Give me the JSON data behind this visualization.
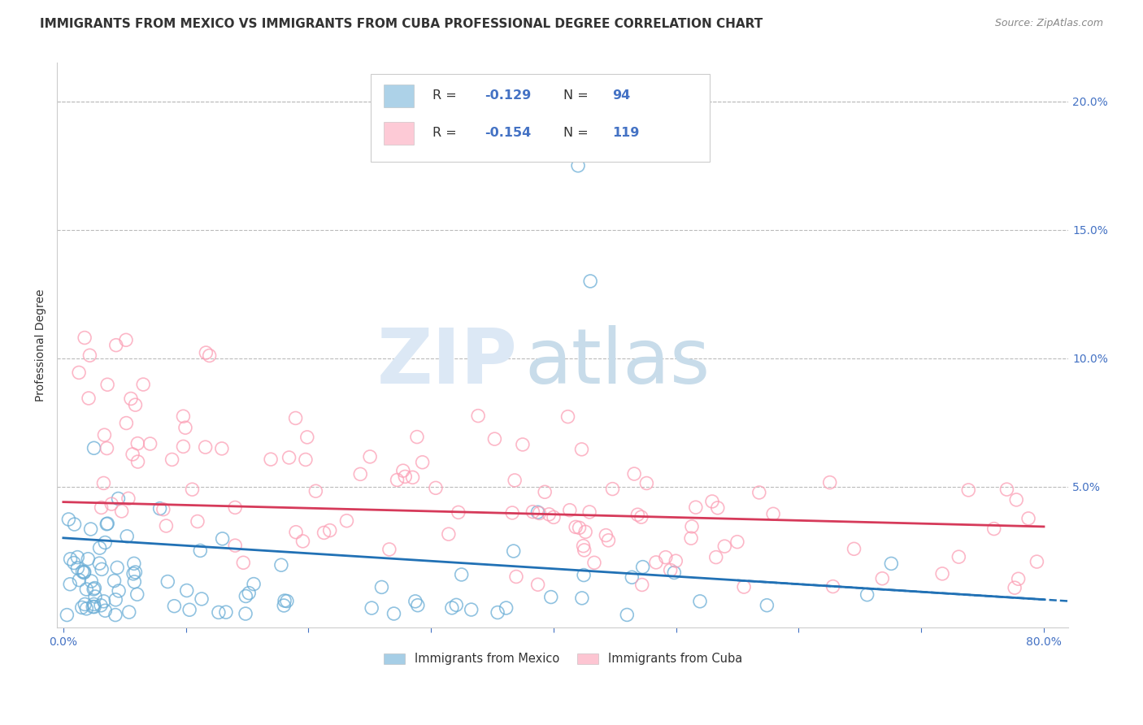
{
  "title": "IMMIGRANTS FROM MEXICO VS IMMIGRANTS FROM CUBA PROFESSIONAL DEGREE CORRELATION CHART",
  "source": "Source: ZipAtlas.com",
  "ylabel": "Professional Degree",
  "xlim": [
    0.0,
    0.8
  ],
  "ylim": [
    -0.005,
    0.215
  ],
  "mexico_color": "#6baed6",
  "cuba_color": "#fc9fb5",
  "mexico_line_color": "#2171b5",
  "cuba_line_color": "#d63a5a",
  "mexico_R": -0.129,
  "mexico_N": 94,
  "cuba_R": -0.154,
  "cuba_N": 119,
  "legend_label_mexico": "Immigrants from Mexico",
  "legend_label_cuba": "Immigrants from Cuba",
  "watermark_zip": "ZIP",
  "watermark_atlas": "atlas",
  "background_color": "#ffffff",
  "grid_color": "#cccccc",
  "tick_color": "#4472c4",
  "title_fontsize": 11,
  "source_fontsize": 9,
  "axis_label_fontsize": 10,
  "legend_fontsize": 11,
  "value_color": "#4472c4",
  "label_color": "#333333",
  "mexico_intercept": 0.03,
  "mexico_slope": -0.03,
  "cuba_intercept": 0.044,
  "cuba_slope": -0.012
}
